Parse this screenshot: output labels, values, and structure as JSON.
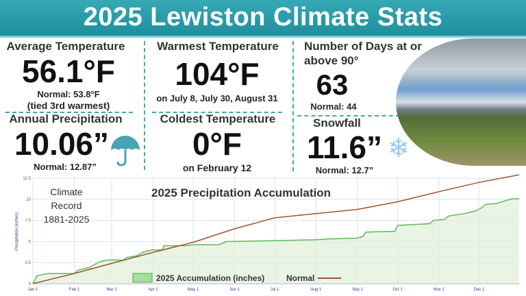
{
  "title": "2025 Lewiston Climate Stats",
  "stats": {
    "avg_temp": {
      "label": "Average Temperature",
      "value": "56.1°F",
      "normal": "Normal: 53.8°F",
      "note": "(tied 3rd warmest)"
    },
    "warmest": {
      "label": "Warmest Temperature",
      "value": "104°F",
      "note": "on July 8, July 30, August 31"
    },
    "days90": {
      "label1": "Number of Days at or",
      "label2": "above 90°",
      "value": "63",
      "normal": "Normal: 44"
    },
    "precip": {
      "label": "Annual Precipitation",
      "value": "10.06”",
      "normal": "Normal: 12.87”",
      "icon": "umbrella-icon"
    },
    "coldest": {
      "label": "Coldest Temperature",
      "value": "0°F",
      "note": "on February 12"
    },
    "snow": {
      "label": "Snowfall",
      "value": "11.6”",
      "normal": "Normal: 12.7”",
      "icon": "snowflake-icon"
    }
  },
  "colors": {
    "header": "#2a9eab",
    "accent": "#3aa9b0",
    "series_2025": "#5cb85c",
    "normal_line": "#a0522d"
  },
  "chart_data": {
    "type": "area",
    "title": "2025 Precipitation Accumulation",
    "annotation": [
      "Climate",
      "Record",
      "1881-2025"
    ],
    "ylabel": "Precipitation (inches)",
    "xlabel": "",
    "ylim": [
      0,
      12.5
    ],
    "yticks": [
      "0",
      "2.5",
      "5",
      "7.5",
      "10",
      "12.5"
    ],
    "xticks": [
      "Jan 1",
      "Feb 1",
      "Mar 1",
      "Apr 1",
      "May 1",
      "Jun 1",
      "Jul 1",
      "Aug 1",
      "Sep 1",
      "Oct 1",
      "Nov 1",
      "Dec 1"
    ],
    "grid": true,
    "legend_position": "bottom",
    "series": [
      {
        "name": "2025 Accumulation (inches)",
        "type": "area",
        "points": [
          [
            "01-01",
            0
          ],
          [
            "01-04",
            0.9
          ],
          [
            "01-06",
            1.0
          ],
          [
            "01-12",
            1.2
          ],
          [
            "02-01",
            1.2
          ],
          [
            "02-04",
            1.6
          ],
          [
            "02-12",
            1.9
          ],
          [
            "02-20",
            2.6
          ],
          [
            "02-26",
            2.8
          ],
          [
            "03-10",
            2.8
          ],
          [
            "03-12",
            3.1
          ],
          [
            "03-20",
            3.3
          ],
          [
            "03-24",
            3.7
          ],
          [
            "03-28",
            3.9
          ],
          [
            "04-01",
            4.0
          ],
          [
            "04-08",
            4.0
          ],
          [
            "04-09",
            4.5
          ],
          [
            "04-25",
            4.5
          ],
          [
            "05-01",
            4.6
          ],
          [
            "05-20",
            4.6
          ],
          [
            "05-26",
            5.0
          ],
          [
            "06-01",
            5.0
          ],
          [
            "07-01",
            5.1
          ],
          [
            "08-01",
            5.2
          ],
          [
            "08-10",
            5.3
          ],
          [
            "09-01",
            5.4
          ],
          [
            "09-05",
            5.6
          ],
          [
            "09-07",
            6.1
          ],
          [
            "09-29",
            6.2
          ],
          [
            "10-01",
            6.9
          ],
          [
            "10-12",
            7.0
          ],
          [
            "10-25",
            7.1
          ],
          [
            "10-28",
            7.5
          ],
          [
            "11-05",
            7.6
          ],
          [
            "11-08",
            8.0
          ],
          [
            "11-20",
            8.3
          ],
          [
            "11-28",
            8.6
          ],
          [
            "12-02",
            8.9
          ],
          [
            "12-06",
            9.4
          ],
          [
            "12-14",
            9.5
          ],
          [
            "12-20",
            9.8
          ],
          [
            "12-26",
            10.06
          ],
          [
            "12-31",
            10.06
          ]
        ]
      },
      {
        "name": "Normal",
        "type": "line",
        "points": [
          [
            "01-01",
            0
          ],
          [
            "02-01",
            1.2
          ],
          [
            "03-01",
            2.4
          ],
          [
            "04-01",
            3.7
          ],
          [
            "05-01",
            4.9
          ],
          [
            "06-01",
            6.5
          ],
          [
            "07-01",
            7.8
          ],
          [
            "08-01",
            8.3
          ],
          [
            "09-01",
            8.8
          ],
          [
            "10-01",
            9.7
          ],
          [
            "11-01",
            10.9
          ],
          [
            "12-01",
            12.0
          ],
          [
            "12-31",
            12.9
          ]
        ]
      }
    ]
  }
}
